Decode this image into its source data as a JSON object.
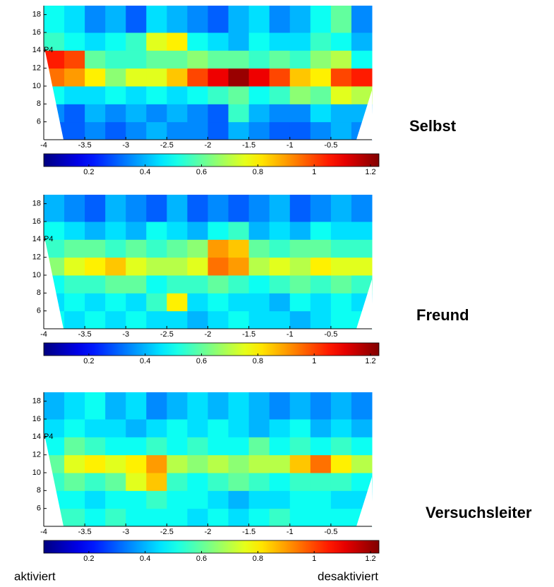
{
  "chart_data": [
    {
      "type": "heatmap",
      "title": "Selbst",
      "annotation": "P4",
      "colormap": "jet",
      "xbins": [
        -4,
        -3.75,
        -3.5,
        -3.25,
        -3,
        -2.75,
        -2.5,
        -2.25,
        -2,
        -1.75,
        -1.5,
        -1.25,
        -1,
        -0.75,
        -0.5,
        -0.25,
        0
      ],
      "ybins": [
        4,
        6,
        8,
        10,
        12,
        14,
        16,
        19
      ],
      "values": [
        [
          0.3,
          0.3,
          0.35,
          0.3,
          0.35,
          0.4,
          0.35,
          0.35,
          0.3,
          0.4,
          0.35,
          0.3,
          0.3,
          0.35,
          0.4,
          0.35
        ],
        [
          0.35,
          0.3,
          0.4,
          0.35,
          0.4,
          0.35,
          0.4,
          0.35,
          0.3,
          0.55,
          0.4,
          0.35,
          0.35,
          0.45,
          0.4,
          0.4
        ],
        [
          0.5,
          0.45,
          0.45,
          0.5,
          0.45,
          0.5,
          0.45,
          0.5,
          0.55,
          0.6,
          0.5,
          0.55,
          0.65,
          0.6,
          0.75,
          0.7
        ],
        [
          0.95,
          0.9,
          0.8,
          0.65,
          0.75,
          0.75,
          0.85,
          1.0,
          1.1,
          1.2,
          1.1,
          1.0,
          0.85,
          0.8,
          1.0,
          1.05
        ],
        [
          1.05,
          1.0,
          0.6,
          0.55,
          0.55,
          0.6,
          0.6,
          0.65,
          0.6,
          0.6,
          0.55,
          0.6,
          0.55,
          0.65,
          0.7,
          0.5
        ],
        [
          0.55,
          0.5,
          0.45,
          0.5,
          0.55,
          0.75,
          0.8,
          0.5,
          0.45,
          0.4,
          0.5,
          0.45,
          0.45,
          0.55,
          0.5,
          0.4
        ],
        [
          0.5,
          0.45,
          0.35,
          0.4,
          0.3,
          0.45,
          0.4,
          0.35,
          0.3,
          0.4,
          0.45,
          0.35,
          0.4,
          0.5,
          0.6,
          0.35
        ]
      ],
      "xlim": [
        -4,
        0
      ],
      "xticks": [
        -4,
        -3.5,
        -3,
        -2.5,
        -2,
        -1.5,
        -1,
        -0.5
      ],
      "ylim": [
        4,
        19
      ],
      "yticks": [
        6,
        8,
        10,
        12,
        14,
        16,
        18
      ],
      "clim": [
        0.04,
        1.23
      ],
      "cticks": [
        0.2,
        0.4,
        0.6,
        0.8,
        1,
        1.2
      ]
    },
    {
      "type": "heatmap",
      "title": "Freund",
      "annotation": "P4",
      "colormap": "jet",
      "xbins": [
        -4,
        -3.75,
        -3.5,
        -3.25,
        -3,
        -2.75,
        -2.5,
        -2.25,
        -2,
        -1.75,
        -1.5,
        -1.25,
        -1,
        -0.75,
        -0.5,
        -0.25,
        0
      ],
      "ybins": [
        4,
        6,
        8,
        10,
        12,
        14,
        16,
        19
      ],
      "values": [
        [
          0.5,
          0.45,
          0.5,
          0.45,
          0.5,
          0.45,
          0.45,
          0.4,
          0.45,
          0.5,
          0.45,
          0.45,
          0.4,
          0.45,
          0.5,
          0.5
        ],
        [
          0.45,
          0.5,
          0.45,
          0.5,
          0.45,
          0.55,
          0.8,
          0.45,
          0.5,
          0.45,
          0.45,
          0.4,
          0.5,
          0.45,
          0.5,
          0.45
        ],
        [
          0.5,
          0.55,
          0.55,
          0.6,
          0.6,
          0.5,
          0.55,
          0.55,
          0.6,
          0.55,
          0.5,
          0.55,
          0.6,
          0.55,
          0.6,
          0.55
        ],
        [
          0.65,
          0.75,
          0.8,
          0.85,
          0.75,
          0.7,
          0.7,
          0.75,
          0.95,
          0.9,
          0.7,
          0.75,
          0.7,
          0.8,
          0.75,
          0.75
        ],
        [
          0.55,
          0.6,
          0.6,
          0.55,
          0.6,
          0.55,
          0.6,
          0.65,
          0.9,
          0.85,
          0.6,
          0.55,
          0.6,
          0.6,
          0.55,
          0.55
        ],
        [
          0.5,
          0.45,
          0.4,
          0.45,
          0.4,
          0.5,
          0.45,
          0.4,
          0.5,
          0.55,
          0.4,
          0.45,
          0.4,
          0.5,
          0.45,
          0.45
        ],
        [
          0.4,
          0.35,
          0.3,
          0.4,
          0.35,
          0.3,
          0.4,
          0.3,
          0.35,
          0.3,
          0.35,
          0.4,
          0.3,
          0.35,
          0.4,
          0.35
        ]
      ],
      "xlim": [
        -4,
        0
      ],
      "xticks": [
        -4,
        -3.5,
        -3,
        -2.5,
        -2,
        -1.5,
        -1,
        -0.5
      ],
      "ylim": [
        4,
        19
      ],
      "yticks": [
        6,
        8,
        10,
        12,
        14,
        16,
        18
      ],
      "clim": [
        0.04,
        1.23
      ],
      "cticks": [
        0.2,
        0.4,
        0.6,
        0.8,
        1,
        1.2
      ]
    },
    {
      "type": "heatmap",
      "title": "Versuchsleiter",
      "annotation": "P4",
      "colormap": "jet",
      "xbins": [
        -4,
        -3.75,
        -3.5,
        -3.25,
        -3,
        -2.75,
        -2.5,
        -2.25,
        -2,
        -1.75,
        -1.5,
        -1.25,
        -1,
        -0.75,
        -0.5,
        -0.25,
        0
      ],
      "ybins": [
        4,
        6,
        8,
        10,
        12,
        14,
        16,
        19
      ],
      "values": [
        [
          0.55,
          0.55,
          0.5,
          0.55,
          0.5,
          0.5,
          0.5,
          0.45,
          0.5,
          0.45,
          0.5,
          0.55,
          0.5,
          0.5,
          0.5,
          0.5
        ],
        [
          0.5,
          0.5,
          0.45,
          0.5,
          0.5,
          0.55,
          0.5,
          0.5,
          0.45,
          0.4,
          0.45,
          0.45,
          0.5,
          0.5,
          0.45,
          0.45
        ],
        [
          0.55,
          0.6,
          0.55,
          0.6,
          0.75,
          0.85,
          0.55,
          0.5,
          0.55,
          0.6,
          0.55,
          0.5,
          0.55,
          0.55,
          0.55,
          0.5
        ],
        [
          0.6,
          0.75,
          0.8,
          0.75,
          0.8,
          0.9,
          0.7,
          0.65,
          0.7,
          0.65,
          0.7,
          0.7,
          0.85,
          0.95,
          0.8,
          0.7
        ],
        [
          0.5,
          0.6,
          0.55,
          0.5,
          0.5,
          0.55,
          0.5,
          0.55,
          0.5,
          0.5,
          0.6,
          0.5,
          0.55,
          0.5,
          0.55,
          0.5
        ],
        [
          0.45,
          0.5,
          0.45,
          0.45,
          0.4,
          0.45,
          0.5,
          0.45,
          0.5,
          0.45,
          0.4,
          0.45,
          0.5,
          0.4,
          0.45,
          0.4
        ],
        [
          0.4,
          0.45,
          0.5,
          0.4,
          0.45,
          0.35,
          0.4,
          0.45,
          0.4,
          0.45,
          0.4,
          0.35,
          0.4,
          0.35,
          0.4,
          0.35
        ]
      ],
      "xlim": [
        -4,
        0
      ],
      "xticks": [
        -4,
        -3.5,
        -3,
        -2.5,
        -2,
        -1.5,
        -1,
        -0.5
      ],
      "ylim": [
        4,
        19
      ],
      "yticks": [
        6,
        8,
        10,
        12,
        14,
        16,
        18
      ],
      "clim": [
        0.04,
        1.23
      ],
      "cticks": [
        0.2,
        0.4,
        0.6,
        0.8,
        1,
        1.2
      ]
    }
  ],
  "footer": {
    "left": "aktiviert",
    "right": "desaktiviert"
  }
}
